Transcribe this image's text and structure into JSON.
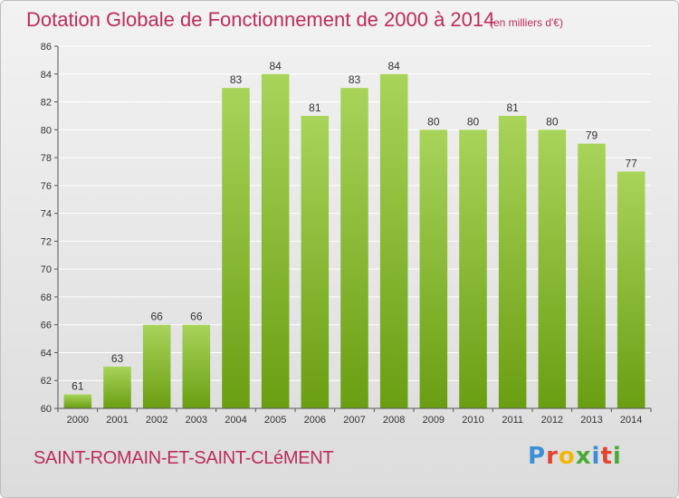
{
  "header": {
    "title": "Dotation Globale de Fonctionnement de 2000 à 2014",
    "unit": "(en milliers d'€)"
  },
  "footer": {
    "commune": "SAINT-ROMAIN-ET-SAINT-CLéMENT",
    "logo": [
      "P",
      "r",
      "o",
      "x",
      "i",
      "t",
      "i"
    ]
  },
  "chart_data": {
    "type": "bar",
    "title": "Dotation Globale de Fonctionnement de 2000 à 2014",
    "subtitle": "(en milliers d'€)",
    "categories": [
      "2000",
      "2001",
      "2002",
      "2003",
      "2004",
      "2005",
      "2006",
      "2007",
      "2008",
      "2009",
      "2010",
      "2011",
      "2012",
      "2013",
      "2014"
    ],
    "values": [
      61,
      63,
      66,
      66,
      83,
      84,
      81,
      83,
      84,
      80,
      80,
      81,
      80,
      79,
      77
    ],
    "ylim": [
      60,
      86
    ],
    "yticks": [
      60,
      62,
      64,
      66,
      68,
      70,
      72,
      74,
      76,
      78,
      80,
      82,
      84,
      86
    ],
    "grid": true,
    "legend": "none",
    "colors": {
      "bar_light": "#a8d45a",
      "bar_dark": "#6a9e12",
      "grid": "#ffffff",
      "axis": "#555555",
      "text": "#333333"
    }
  }
}
